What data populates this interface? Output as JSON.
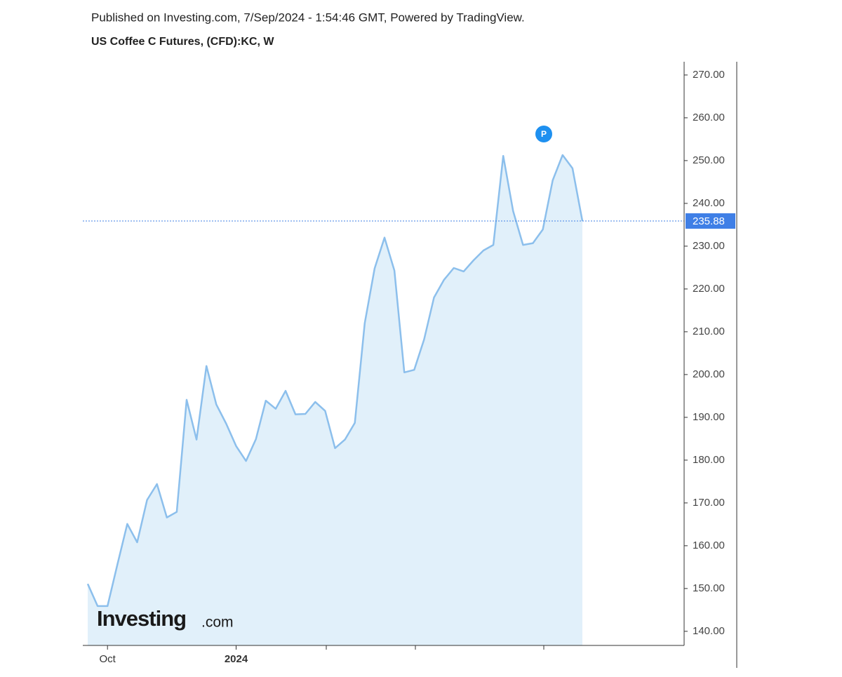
{
  "chart_data": {
    "type": "area",
    "subtitle": "Published on Investing.com, 7/Sep/2024 - 1:54:46 GMT, Powered by TradingView.",
    "title": "US Coffee C Futures, (CFD):KC, W",
    "categories": [
      null,
      null,
      "Oct",
      null,
      null,
      null,
      null,
      null,
      null,
      null,
      null,
      null,
      null,
      null,
      null,
      "2024",
      null,
      null,
      null,
      null,
      null,
      null,
      null,
      null,
      null,
      null,
      null,
      null,
      null,
      null,
      null,
      null,
      null,
      null,
      null,
      null,
      null,
      null,
      null,
      null,
      null,
      null,
      null,
      null,
      null,
      null,
      null,
      null,
      null,
      null,
      null
    ],
    "values": [
      151.1,
      145.9,
      145.9,
      155.6,
      165.1,
      160.8,
      170.7,
      174.4,
      166.6,
      167.9,
      194.1,
      184.8,
      202.0,
      193.0,
      188.5,
      183.3,
      179.8,
      184.9,
      193.9,
      192.0,
      196.2,
      190.7,
      190.8,
      193.6,
      191.5,
      182.8,
      184.8,
      188.7,
      212.0,
      224.8,
      232.0,
      224.3,
      200.5,
      201.1,
      208.2,
      218.0,
      222.1,
      224.9,
      224.1,
      226.7,
      229.0,
      230.3,
      251.1,
      238.2,
      230.3,
      230.7,
      233.9,
      245.4,
      251.3,
      248.2,
      235.88
    ],
    "color": "#8cbfec",
    "fill_color": "#e1f0fa",
    "ylim": [
      136.7,
      273.1
    ],
    "yticks": [
      {
        "value": 140,
        "label": "140.00"
      },
      {
        "value": 150,
        "label": "150.00"
      },
      {
        "value": 160,
        "label": "160.00"
      },
      {
        "value": 170,
        "label": "170.00"
      },
      {
        "value": 180,
        "label": "180.00"
      },
      {
        "value": 190,
        "label": "190.00"
      },
      {
        "value": 200,
        "label": "200.00"
      },
      {
        "value": 210,
        "label": "210.00"
      },
      {
        "value": 220,
        "label": "220.00"
      },
      {
        "value": 230,
        "label": "230.00"
      },
      {
        "value": 240,
        "label": "240.00"
      },
      {
        "value": 250,
        "label": "250.00"
      },
      {
        "value": 260,
        "label": "260.00"
      },
      {
        "value": 270,
        "label": "270.00"
      }
    ],
    "marker_label": "P",
    "watermark": [
      "Investing",
      ".com"
    ]
  }
}
